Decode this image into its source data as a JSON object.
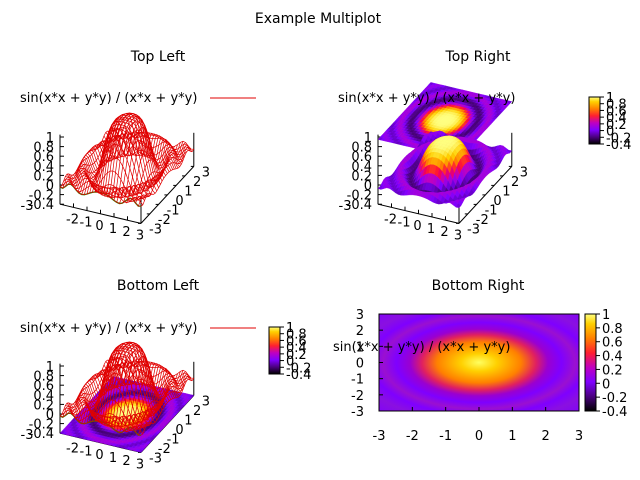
{
  "page_title": "Example Multiplot",
  "colors": {
    "surface_line": "#e00000",
    "base_line": "#00a000",
    "palette": [
      "#000000",
      "#4b0080",
      "#7f00ff",
      "#c000c0",
      "#ff0040",
      "#ff8000",
      "#ffd000",
      "#ffff80"
    ]
  },
  "panels": {
    "tl": {
      "title": "Top Left",
      "legend": "sin(x*x + y*y) / (x*x + y*y)",
      "x_ticks": [
        "-2",
        "-1",
        "0",
        "1",
        "2",
        "3"
      ],
      "y_ticks": [
        "-3",
        "-2",
        "-1",
        "0",
        "1",
        "2",
        "3"
      ],
      "z_ticks": [
        "1",
        "0.8",
        "0.6",
        "0.4",
        "0.2",
        "0",
        "-0.2",
        "-0.4"
      ],
      "extra_tick": "-3"
    },
    "tr": {
      "title": "Top Right",
      "legend": "sin(x*x + y*y) / (x*x + y*y)",
      "x_ticks": [
        "-2",
        "-1",
        "0",
        "1",
        "2",
        "3"
      ],
      "y_ticks": [
        "-3",
        "-2",
        "-1",
        "0",
        "1",
        "2",
        "3"
      ],
      "z_ticks": [
        "1",
        "0.8",
        "0.6",
        "0.4",
        "0.2",
        "0",
        "-0.2",
        "-0.4"
      ],
      "extra_tick": "-3",
      "cb_ticks": [
        "1",
        "0.8",
        "0.6",
        "0.4",
        "0.2",
        "0",
        "-0.2",
        "-0.4"
      ]
    },
    "bl": {
      "title": "Bottom Left",
      "legend": "sin(x*x + y*y) / (x*x + y*y)",
      "x_ticks": [
        "-2",
        "-1",
        "0",
        "1",
        "2",
        "3"
      ],
      "y_ticks": [
        "-3",
        "-2",
        "-1",
        "0",
        "1",
        "2",
        "3"
      ],
      "z_ticks": [
        "1",
        "0.8",
        "0.6",
        "0.4",
        "0.2",
        "0",
        "-0.2",
        "-0.4"
      ],
      "extra_tick": "-3",
      "cb_ticks": [
        "1",
        "0.8",
        "0.6",
        "0.4",
        "0.2",
        "0",
        "-0.2",
        "-0.4"
      ]
    },
    "br": {
      "title": "Bottom Right",
      "legend": "sin(x*x + y*y) / (x*x + y*y)",
      "x_ticks": [
        "-3",
        "-2",
        "-1",
        "0",
        "1",
        "2",
        "3"
      ],
      "y_ticks": [
        "3",
        "2",
        "1",
        "0",
        "-1",
        "-2",
        "-3"
      ],
      "cb_ticks": [
        "1",
        "0.8",
        "0.6",
        "0.4",
        "0.2",
        "0",
        "-0.2",
        "-0.4"
      ]
    }
  },
  "chart_data": [
    {
      "type": "heatmap",
      "title": "Top Left",
      "style": "surface mesh",
      "function": "sin(x*x + y*y) / (x*x + y*y)",
      "xlim": [
        -3,
        3
      ],
      "ylim": [
        -3,
        3
      ],
      "zlim": [
        -0.4,
        1
      ],
      "legend": [
        "sin(x*x + y*y) / (x*x + y*y)"
      ]
    },
    {
      "type": "heatmap",
      "title": "Top Right",
      "style": "pm3d surface + base map",
      "function": "sin(x*x + y*y) / (x*x + y*y)",
      "xlim": [
        -3,
        3
      ],
      "ylim": [
        -3,
        3
      ],
      "zlim": [
        -0.4,
        1
      ],
      "cbrange": [
        -0.4,
        1
      ],
      "legend": [
        "sin(x*x + y*y) / (x*x + y*y)"
      ]
    },
    {
      "type": "heatmap",
      "title": "Bottom Left",
      "style": "mesh surface + pm3d base map",
      "function": "sin(x*x + y*y) / (x*x + y*y)",
      "xlim": [
        -3,
        3
      ],
      "ylim": [
        -3,
        3
      ],
      "zlim": [
        -0.4,
        1
      ],
      "cbrange": [
        -0.4,
        1
      ],
      "legend": [
        "sin(x*x + y*y) / (x*x + y*y)"
      ]
    },
    {
      "type": "heatmap",
      "title": "Bottom Right",
      "style": "pm3d map (2D)",
      "function": "sin(x*x + y*y) / (x*x + y*y)",
      "xlim": [
        -3,
        3
      ],
      "ylim": [
        -3,
        3
      ],
      "cbrange": [
        -0.4,
        1
      ],
      "legend": [
        "sin(x*x + y*y) / (x*x + y*y)"
      ]
    }
  ]
}
